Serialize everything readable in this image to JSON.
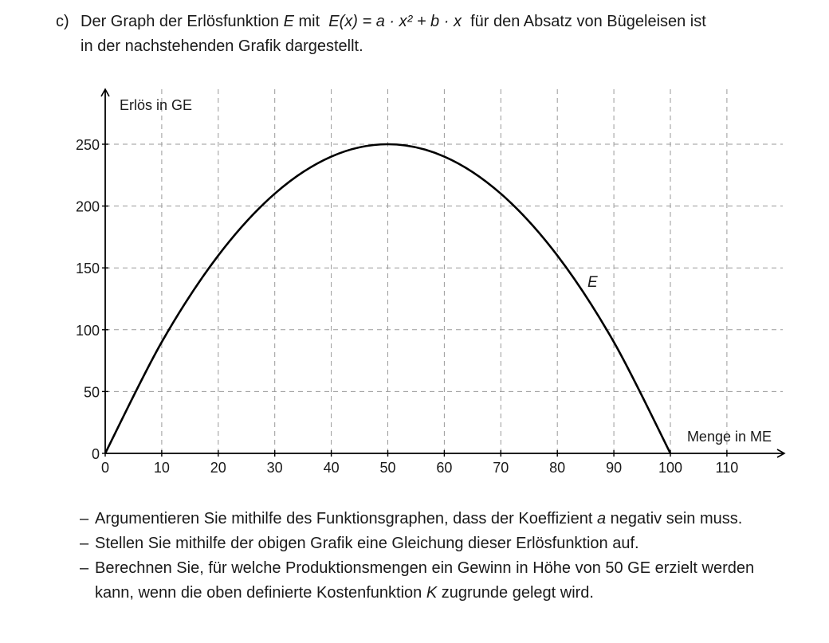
{
  "intro": {
    "label": "c)",
    "line1_pre": "Der Graph der Erlösfunktion ",
    "line1_var": "E",
    "line1_mid": " mit  ",
    "line1_formula": "E(x) = a · x² + b · x",
    "line1_post": "  für den Absatz von Bügeleisen ist",
    "line2": "in der nachstehenden Grafik dargestellt."
  },
  "chart_data": {
    "type": "line",
    "ylabel": "Erlös in GE",
    "xlabel": "Menge in ME",
    "xlim": [
      0,
      120
    ],
    "ylim": [
      0,
      290
    ],
    "x_ticks": [
      0,
      10,
      20,
      30,
      40,
      50,
      60,
      70,
      80,
      90,
      100,
      110
    ],
    "y_ticks": [
      0,
      50,
      100,
      150,
      200,
      250
    ],
    "grid": true,
    "grid_style": "dashed",
    "series": [
      {
        "name": "E",
        "function": "E(x) = -0.1·x² + 10·x",
        "x": [
          0,
          10,
          20,
          30,
          40,
          50,
          60,
          70,
          80,
          90,
          100
        ],
        "y": [
          0,
          90,
          160,
          210,
          240,
          250,
          240,
          210,
          160,
          90,
          0
        ]
      }
    ]
  },
  "tasks": [
    {
      "dash": "–",
      "pre": "Argumentieren Sie mithilfe des Funktionsgraphen, dass der Koeffizient ",
      "var": "a",
      "post": " negativ sein muss."
    },
    {
      "dash": "–",
      "text": "Stellen Sie mithilfe der obigen Grafik eine Gleichung dieser Erlösfunktion auf."
    },
    {
      "dash": "–",
      "pre": "Berechnen Sie, für welche Produktionsmengen ein Gewinn in Höhe von 50 GE erzielt werden kann, wenn die oben definierte Kostenfunktion ",
      "var": "K",
      "post": " zugrunde gelegt wird."
    }
  ],
  "colors": {
    "curve": "#000000",
    "axis": "#000000",
    "grid": "#9a9a9a",
    "text": "#1a1a1a"
  }
}
